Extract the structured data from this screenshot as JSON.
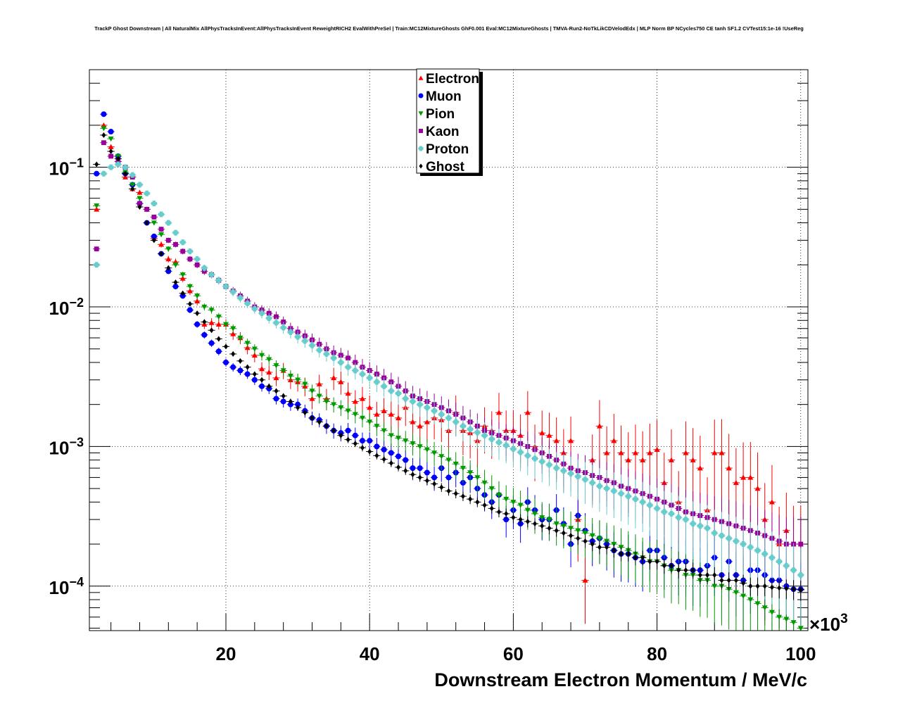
{
  "chart_data": {
    "type": "scatter",
    "title": "TrackP Ghost Downstream | All NaturalMix AllPhysTracksInEvent:AllPhysTracksInEvent ReweightRICH2 EvalWithPreSel | Train:MC12MixtureGhosts GhF0.001 Eval:MC12MixtureGhosts | TMVA-Run2-NoTkLikCDVelodEdx | MLP Norm BP NCycles750 CE tanh SF1.2 CVTest15:1e-16 !UseReg",
    "xlabel": "Downstream Electron Momentum / MeV/c",
    "x_multiplier_label": "×10",
    "x_multiplier_exp": "3",
    "x_ticks": [
      {
        "value": 20,
        "label": "20"
      },
      {
        "value": 40,
        "label": "40"
      },
      {
        "value": 60,
        "label": "60"
      },
      {
        "value": 80,
        "label": "80"
      },
      {
        "value": 100,
        "label": "100"
      }
    ],
    "y_ticks": [
      {
        "value": 0.1,
        "base": "10",
        "exp": "−1"
      },
      {
        "value": 0.01,
        "base": "10",
        "exp": "−2"
      },
      {
        "value": 0.001,
        "base": "10",
        "exp": "−3"
      },
      {
        "value": 0.0001,
        "base": "10",
        "exp": "−4"
      }
    ],
    "xlim": [
      1,
      101
    ],
    "ylim": [
      4.8e-05,
      0.5
    ],
    "log_y": true,
    "grid": true,
    "legend_placement": "top-center",
    "x": [
      2,
      3,
      4,
      5,
      6,
      7,
      8,
      9,
      10,
      11,
      12,
      13,
      14,
      15,
      16,
      17,
      18,
      19,
      20,
      21,
      22,
      23,
      24,
      25,
      26,
      27,
      28,
      29,
      30,
      31,
      32,
      33,
      34,
      35,
      36,
      37,
      38,
      39,
      40,
      41,
      42,
      43,
      44,
      45,
      46,
      47,
      48,
      49,
      50,
      51,
      52,
      53,
      54,
      55,
      56,
      57,
      58,
      59,
      60,
      61,
      62,
      63,
      64,
      65,
      66,
      67,
      68,
      69,
      70,
      71,
      72,
      73,
      74,
      75,
      76,
      77,
      78,
      79,
      80,
      81,
      82,
      83,
      84,
      85,
      86,
      87,
      88,
      89,
      90,
      91,
      92,
      93,
      94,
      95,
      96,
      97,
      98,
      99,
      100
    ],
    "series": [
      {
        "name": "Electron",
        "color": "#ff0000",
        "marker": "triangle-up",
        "values": [
          0.05,
          0.2,
          0.14,
          0.12,
          0.085,
          0.07,
          0.066,
          0.05,
          0.031,
          0.028,
          0.022,
          0.021,
          0.016,
          0.013,
          0.011,
          0.0075,
          0.0077,
          0.0075,
          0.0075,
          0.0064,
          0.006,
          0.0051,
          0.0045,
          0.0036,
          0.0034,
          0.0031,
          0.0035,
          0.003,
          0.0029,
          0.0027,
          0.0022,
          0.0028,
          0.0022,
          0.0031,
          0.0029,
          0.0024,
          0.0021,
          0.0022,
          0.0019,
          0.0017,
          0.0018,
          0.0017,
          0.0016,
          0.0019,
          0.0015,
          0.0014,
          0.0015,
          0.0016,
          0.00155,
          0.0013,
          0.00175,
          0.0013,
          0.00125,
          0.0011,
          0.0014,
          0.0013,
          0.00175,
          0.0013,
          0.0013,
          0.0012,
          0.00175,
          0.001,
          0.00125,
          0.0012,
          0.0011,
          0.0009,
          0.0011,
          0.0003,
          0.00011,
          0.0008,
          0.0014,
          0.0009,
          0.0011,
          0.0009,
          0.0008,
          0.0009,
          0.0008,
          0.0009,
          0.00095,
          0.00055,
          0.0008,
          0.0004,
          0.0009,
          0.0008,
          0.0007,
          0.00035,
          0.0009,
          0.0009,
          0.0007,
          0.00055,
          0.0006,
          0.0006,
          0.0005,
          0.0003,
          0.0004,
          0.0002,
          0.00025,
          0.0002,
          0.0002
        ]
      },
      {
        "name": "Muon",
        "color": "#0000ff",
        "marker": "circle",
        "values": [
          0.09,
          0.24,
          0.18,
          0.12,
          0.09,
          0.075,
          0.055,
          0.04,
          0.032,
          0.024,
          0.018,
          0.014,
          0.012,
          0.0095,
          0.0075,
          0.0063,
          0.0055,
          0.0048,
          0.004,
          0.0037,
          0.0035,
          0.0033,
          0.003,
          0.0027,
          0.0026,
          0.0022,
          0.0021,
          0.002,
          0.002,
          0.0018,
          0.0016,
          0.00155,
          0.0014,
          0.0013,
          0.00125,
          0.0013,
          0.0012,
          0.0011,
          0.0011,
          0.001,
          0.00095,
          0.0009,
          0.00085,
          0.0008,
          0.0007,
          0.0007,
          0.00065,
          0.0006,
          0.0007,
          0.0006,
          0.00065,
          0.00055,
          0.0006,
          0.0005,
          0.00045,
          0.0004,
          0.00045,
          0.0003,
          0.00035,
          0.00028,
          0.0004,
          0.00035,
          0.0003,
          0.0003,
          0.00035,
          0.00028,
          0.0002,
          0.00032,
          0.00025,
          0.00021,
          0.00022,
          0.0002,
          0.00018,
          0.00017,
          0.00017,
          0.00016,
          0.00015,
          0.00018,
          0.00018,
          0.00016,
          0.00014,
          0.00015,
          0.00015,
          0.00013,
          0.00013,
          0.00014,
          0.00016,
          0.00012,
          0.00015,
          0.00012,
          0.00011,
          0.00013,
          0.00013,
          0.00012,
          0.00011,
          0.00011,
          0.0001,
          9.5e-05,
          9.5e-05
        ]
      },
      {
        "name": "Pion",
        "color": "#009900",
        "marker": "triangle-down",
        "values": [
          0.053,
          0.19,
          0.16,
          0.12,
          0.092,
          0.075,
          0.06,
          0.05,
          0.04,
          0.033,
          0.026,
          0.02,
          0.017,
          0.014,
          0.012,
          0.01,
          0.0095,
          0.0085,
          0.0075,
          0.007,
          0.006,
          0.0055,
          0.005,
          0.0045,
          0.0042,
          0.0038,
          0.0035,
          0.0032,
          0.003,
          0.0028,
          0.0025,
          0.0023,
          0.0021,
          0.002,
          0.0019,
          0.0018,
          0.0017,
          0.0016,
          0.0015,
          0.0014,
          0.0013,
          0.0012,
          0.00115,
          0.0011,
          0.00105,
          0.001,
          0.00095,
          0.0009,
          0.00085,
          0.0008,
          0.00075,
          0.0007,
          0.00065,
          0.0006,
          0.00055,
          0.0005,
          0.00045,
          0.00042,
          0.0004,
          0.00038,
          0.00035,
          0.00033,
          0.00031,
          0.0003,
          0.00028,
          0.00027,
          0.00026,
          0.00025,
          0.00024,
          0.00023,
          0.00022,
          0.00021,
          0.0002,
          0.00019,
          0.00018,
          0.00017,
          0.00016,
          0.00015,
          0.00015,
          0.00014,
          0.00013,
          0.00013,
          0.00012,
          0.00012,
          0.00011,
          0.00011,
          0.0001,
          0.0001,
          9.5e-05,
          9e-05,
          8.5e-05,
          8e-05,
          7.5e-05,
          7e-05,
          6.5e-05,
          6e-05,
          5.8e-05,
          5.5e-05,
          5e-05
        ]
      },
      {
        "name": "Kaon",
        "color": "#990099",
        "marker": "square",
        "values": [
          0.026,
          0.15,
          0.12,
          0.11,
          0.1,
          0.085,
          0.055,
          0.05,
          0.044,
          0.036,
          0.03,
          0.028,
          0.025,
          0.022,
          0.02,
          0.018,
          0.017,
          0.0155,
          0.014,
          0.013,
          0.012,
          0.011,
          0.01,
          0.0095,
          0.009,
          0.0085,
          0.0078,
          0.007,
          0.0066,
          0.0062,
          0.0058,
          0.0054,
          0.005,
          0.0047,
          0.0045,
          0.0043,
          0.004,
          0.0037,
          0.0035,
          0.0033,
          0.0031,
          0.0029,
          0.0027,
          0.0025,
          0.0023,
          0.0022,
          0.0021,
          0.002,
          0.0019,
          0.0018,
          0.0017,
          0.0016,
          0.0015,
          0.0014,
          0.0013,
          0.00125,
          0.0012,
          0.00115,
          0.0011,
          0.00105,
          0.001,
          0.00095,
          0.0009,
          0.00085,
          0.0008,
          0.00075,
          0.0007,
          0.00067,
          0.00065,
          0.00062,
          0.0006,
          0.00057,
          0.00055,
          0.00052,
          0.0005,
          0.00048,
          0.00046,
          0.00044,
          0.00042,
          0.0004,
          0.00038,
          0.00036,
          0.00034,
          0.00033,
          0.00032,
          0.00031,
          0.0003,
          0.00029,
          0.00028,
          0.00027,
          0.00026,
          0.00025,
          0.00024,
          0.00023,
          0.00022,
          0.00021,
          0.0002,
          0.0002,
          0.0002
        ]
      },
      {
        "name": "Proton",
        "color": "#66cccc",
        "marker": "cross",
        "values": [
          0.02,
          0.09,
          0.1,
          0.105,
          0.1,
          0.088,
          0.075,
          0.065,
          0.055,
          0.046,
          0.04,
          0.034,
          0.029,
          0.025,
          0.022,
          0.019,
          0.017,
          0.0155,
          0.014,
          0.0128,
          0.0116,
          0.0106,
          0.0097,
          0.009,
          0.0083,
          0.0077,
          0.0071,
          0.0066,
          0.0061,
          0.0057,
          0.0053,
          0.0049,
          0.0046,
          0.0043,
          0.004,
          0.0037,
          0.0035,
          0.0033,
          0.0031,
          0.0029,
          0.0027,
          0.0025,
          0.0024,
          0.0022,
          0.0021,
          0.002,
          0.0019,
          0.0018,
          0.0017,
          0.0016,
          0.0015,
          0.0014,
          0.00133,
          0.00126,
          0.0012,
          0.00113,
          0.00107,
          0.00102,
          0.00096,
          0.00091,
          0.00086,
          0.00082,
          0.00078,
          0.00074,
          0.0007,
          0.00067,
          0.00064,
          0.00061,
          0.00058,
          0.00055,
          0.00052,
          0.0005,
          0.00048,
          0.00046,
          0.00044,
          0.00042,
          0.0004,
          0.00038,
          0.00036,
          0.00034,
          0.00033,
          0.00031,
          0.0003,
          0.00028,
          0.00027,
          0.00026,
          0.00024,
          0.00023,
          0.00022,
          0.00021,
          0.0002,
          0.00019,
          0.00018,
          0.00017,
          0.00016,
          0.00015,
          0.00014,
          0.00013,
          0.00012
        ]
      },
      {
        "name": "Ghost",
        "color": "#000000",
        "marker": "diamond",
        "values": [
          0.105,
          0.17,
          0.13,
          0.115,
          0.09,
          0.07,
          0.052,
          0.04,
          0.03,
          0.024,
          0.019,
          0.015,
          0.0125,
          0.0105,
          0.009,
          0.0078,
          0.0068,
          0.0059,
          0.0052,
          0.0046,
          0.0041,
          0.0037,
          0.0033,
          0.003,
          0.0027,
          0.0025,
          0.0023,
          0.0021,
          0.0019,
          0.00175,
          0.0016,
          0.0015,
          0.0014,
          0.0013,
          0.0012,
          0.00112,
          0.00105,
          0.00098,
          0.00092,
          0.00086,
          0.00081,
          0.00076,
          0.00071,
          0.00067,
          0.00063,
          0.0006,
          0.00057,
          0.00054,
          0.00051,
          0.00048,
          0.00046,
          0.00044,
          0.00042,
          0.0004,
          0.00038,
          0.00036,
          0.00034,
          0.00033,
          0.00031,
          0.0003,
          0.00029,
          0.00028,
          0.00027,
          0.00026,
          0.00025,
          0.00024,
          0.00023,
          0.00022,
          0.00021,
          0.0002,
          0.00019,
          0.00019,
          0.00018,
          0.00017,
          0.00017,
          0.00016,
          0.00016,
          0.00015,
          0.00015,
          0.00014,
          0.00014,
          0.00013,
          0.00013,
          0.00013,
          0.00012,
          0.00012,
          0.00012,
          0.00011,
          0.00011,
          0.00011,
          0.000105,
          0.0001,
          0.0001,
          0.0001,
          9.8e-05,
          9.7e-05,
          9.6e-05,
          9.5e-05,
          9.4e-05
        ]
      }
    ]
  }
}
